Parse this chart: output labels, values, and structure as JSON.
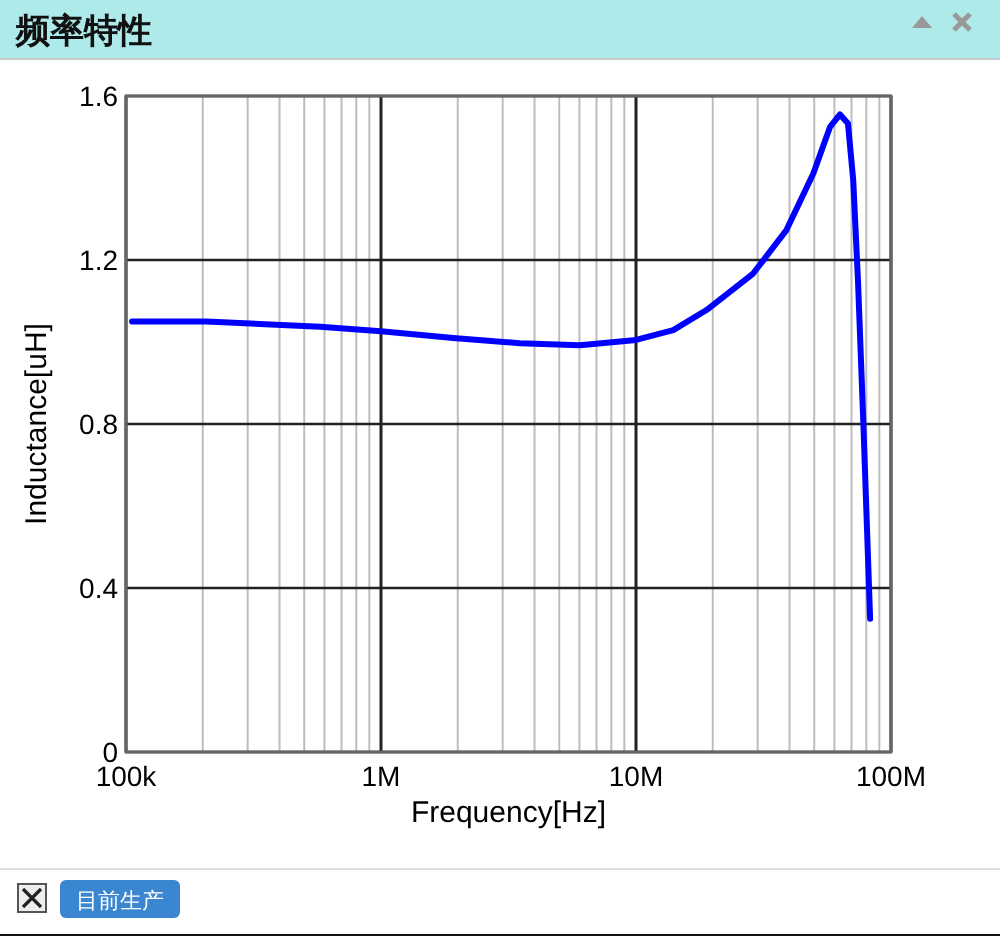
{
  "chart_data": {
    "type": "line",
    "title": "频率特性",
    "xlabel": "Frequency[Hz]",
    "ylabel": "Inductance[uH]",
    "log": "x",
    "xlim": [
      100000,
      100000000
    ],
    "xticks": [
      {
        "value": 100000,
        "label": "100k"
      },
      {
        "value": 1000000,
        "label": "1M"
      },
      {
        "value": 10000000,
        "label": "10M"
      },
      {
        "value": 100000000,
        "label": "100M"
      }
    ],
    "ylim": [
      0,
      1.6
    ],
    "yticks": [
      0,
      0.4,
      0.8,
      1.2,
      1.6
    ],
    "grid": true,
    "annotations": [
      "目前生产"
    ],
    "x": [
      105600,
      207000,
      577000,
      1000000,
      1920000,
      3510000,
      6030000,
      10000000,
      14000000,
      18900000,
      28800000,
      38900000,
      49600000,
      57700000,
      63100000,
      67800000,
      71100000,
      74200000,
      78000000,
      82800000
    ],
    "series": [
      {
        "color": "#0000ff",
        "values": [
          1.05,
          1.05,
          1.037,
          1.026,
          1.01,
          0.997,
          0.992,
          1.005,
          1.029,
          1.078,
          1.167,
          1.273,
          1.411,
          1.525,
          1.555,
          1.533,
          1.395,
          1.151,
          0.794,
          0.325
        ]
      }
    ]
  }
}
